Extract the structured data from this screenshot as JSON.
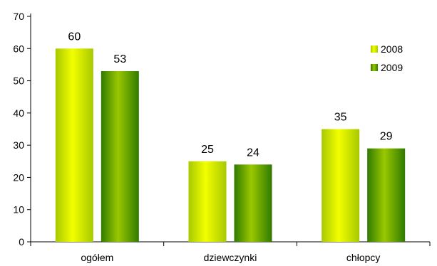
{
  "chart_data": {
    "type": "bar",
    "title": "",
    "xlabel": "",
    "ylabel": "",
    "categories": [
      "ogółem",
      "dziewczynki",
      "chłopcy"
    ],
    "series": [
      {
        "name": "2008",
        "values": [
          60,
          25,
          35
        ],
        "color_light": "#f2ff00",
        "color_dark": "#a8c800"
      },
      {
        "name": "2009",
        "values": [
          53,
          24,
          29
        ],
        "color_light": "#9ac800",
        "color_dark": "#2f7a00"
      }
    ],
    "ylim": [
      0,
      70
    ],
    "yticks": [
      0,
      10,
      20,
      30,
      40,
      50,
      60,
      70
    ],
    "grid": false,
    "legend_position": "top-right",
    "data_labels": true
  }
}
